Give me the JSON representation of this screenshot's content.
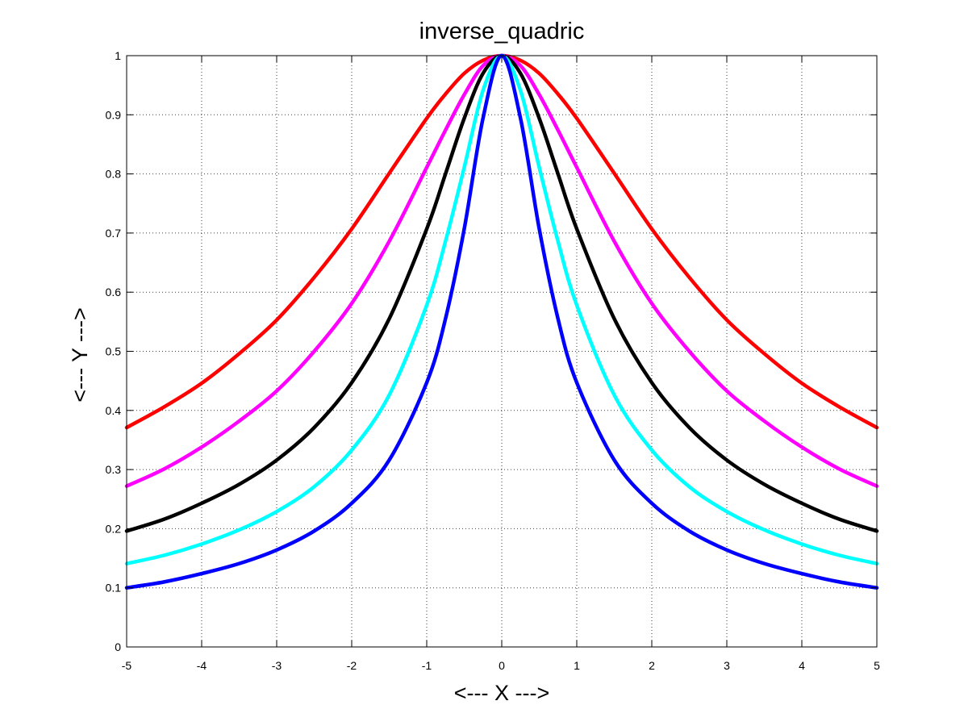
{
  "chart_data": {
    "type": "line",
    "title": "inverse_quadric",
    "xlabel": "<--- X --->",
    "ylabel": "<--- Y --->",
    "xlim": [
      -5,
      5
    ],
    "ylim": [
      0,
      1
    ],
    "xticks": [
      -5,
      -4,
      -3,
      -2,
      -1,
      0,
      1,
      2,
      3,
      4,
      5
    ],
    "yticks": [
      0,
      0.1,
      0.2,
      0.3,
      0.4,
      0.5,
      0.6,
      0.7,
      0.8,
      0.9,
      1
    ],
    "xtick_labels": [
      "-5",
      "-4",
      "-3",
      "-2",
      "-1",
      "0",
      "1",
      "2",
      "3",
      "4",
      "5"
    ],
    "ytick_labels": [
      "0",
      "0.1",
      "0.2",
      "0.3",
      "0.4",
      "0.5",
      "0.6",
      "0.7",
      "0.8",
      "0.9",
      "1"
    ],
    "grid": true,
    "x": [
      -5,
      -4.5,
      -4,
      -3.5,
      -3,
      -2.5,
      -2,
      -1.5,
      -1,
      -0.75,
      -0.5,
      -0.25,
      0,
      0.25,
      0.5,
      0.75,
      1,
      1.5,
      2,
      2.5,
      3,
      3.5,
      4,
      4.5,
      5
    ],
    "series": [
      {
        "color": "#ff0000",
        "values": [
          0.371,
          0.406,
          0.446,
          0.496,
          0.553,
          0.625,
          0.707,
          0.801,
          0.894,
          0.935,
          0.97,
          0.992,
          1.0,
          0.992,
          0.97,
          0.935,
          0.894,
          0.801,
          0.707,
          0.625,
          0.553,
          0.496,
          0.446,
          0.406,
          0.371
        ]
      },
      {
        "color": "#ff00ff",
        "values": [
          0.272,
          0.301,
          0.338,
          0.382,
          0.433,
          0.5,
          0.581,
          0.686,
          0.811,
          0.874,
          0.934,
          0.983,
          1.0,
          0.983,
          0.934,
          0.874,
          0.811,
          0.686,
          0.581,
          0.5,
          0.433,
          0.382,
          0.338,
          0.301,
          0.272
        ]
      },
      {
        "color": "#000000",
        "values": [
          0.196,
          0.216,
          0.243,
          0.275,
          0.316,
          0.371,
          0.447,
          0.555,
          0.707,
          0.8,
          0.894,
          0.97,
          1.0,
          0.97,
          0.894,
          0.8,
          0.707,
          0.555,
          0.447,
          0.371,
          0.316,
          0.275,
          0.243,
          0.216,
          0.196
        ]
      },
      {
        "color": "#00ffff",
        "values": [
          0.141,
          0.155,
          0.174,
          0.198,
          0.229,
          0.271,
          0.333,
          0.426,
          0.578,
          0.686,
          0.811,
          0.941,
          1.0,
          0.941,
          0.811,
          0.686,
          0.578,
          0.426,
          0.333,
          0.271,
          0.229,
          0.198,
          0.174,
          0.155,
          0.141
        ]
      },
      {
        "color": "#0000ff",
        "values": [
          0.1,
          0.11,
          0.124,
          0.141,
          0.164,
          0.196,
          0.243,
          0.316,
          0.447,
          0.555,
          0.707,
          0.894,
          1.0,
          0.894,
          0.707,
          0.555,
          0.447,
          0.316,
          0.243,
          0.196,
          0.164,
          0.141,
          0.124,
          0.11,
          0.1
        ]
      }
    ]
  }
}
